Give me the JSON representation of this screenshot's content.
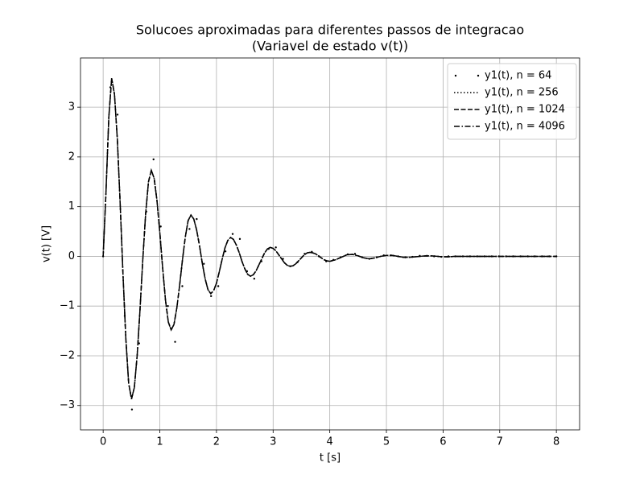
{
  "chart_data": {
    "type": "line",
    "title": "Solucoes aproximadas para diferentes passos de integracao",
    "subtitle": "(Variavel de estado v(t))",
    "xlabel": "t [s]",
    "ylabel": "v(t) [V]",
    "xlim": [
      -0.4,
      8.41
    ],
    "xticks": [
      0,
      1,
      2,
      3,
      4,
      5,
      6,
      7,
      8
    ],
    "ylim": [
      -3.49,
      3.99
    ],
    "yticks": [
      {
        "value": -3,
        "label": "−3"
      },
      {
        "value": -2,
        "label": "−2"
      },
      {
        "value": -1,
        "label": "−1"
      },
      0,
      1,
      2,
      3
    ],
    "grid": true,
    "legend": "upper right",
    "x": [
      0,
      0.05,
      0.1,
      0.15,
      0.2,
      0.25,
      0.3,
      0.35,
      0.4,
      0.45,
      0.5,
      0.55,
      0.6,
      0.65,
      0.7,
      0.75,
      0.8,
      0.85,
      0.9,
      0.95,
      1.0,
      1.05,
      1.1,
      1.15,
      1.2,
      1.25,
      1.3,
      1.35,
      1.4,
      1.45,
      1.5,
      1.55,
      1.6,
      1.65,
      1.7,
      1.75,
      1.8,
      1.85,
      1.9,
      1.95,
      2.0,
      2.05,
      2.1,
      2.15,
      2.2,
      2.25,
      2.3,
      2.35,
      2.4,
      2.45,
      2.5,
      2.55,
      2.6,
      2.65,
      2.7,
      2.75,
      2.8,
      2.85,
      2.9,
      2.95,
      3.0,
      3.05,
      3.1,
      3.15,
      3.2,
      3.25,
      3.3,
      3.35,
      3.4,
      3.45,
      3.5,
      3.55,
      3.6,
      3.65,
      3.7,
      3.75,
      3.8,
      3.85,
      3.9,
      3.95,
      4.0,
      4.1,
      4.2,
      4.3,
      4.4,
      4.5,
      4.6,
      4.7,
      4.8,
      4.9,
      5.0,
      5.1,
      5.2,
      5.3,
      5.4,
      5.5,
      5.6,
      5.7,
      5.8,
      5.9,
      6.0,
      6.1,
      6.2,
      6.3,
      6.4,
      6.5,
      6.6,
      6.7,
      6.8,
      6.9,
      7.0,
      7.1,
      7.2,
      7.3,
      7.4,
      7.5,
      7.6,
      7.7,
      7.8,
      7.9,
      8.0
    ],
    "series": [
      {
        "name": "y1(t), n = 64",
        "color": "#000000",
        "linestyle": "none",
        "marker": "dot",
        "x": [
          0,
          0.127,
          0.254,
          0.381,
          0.508,
          0.635,
          0.762,
          0.889,
          1.016,
          1.143,
          1.27,
          1.397,
          1.524,
          1.651,
          1.778,
          1.905,
          2.032,
          2.159,
          2.286,
          2.413,
          2.54,
          2.667,
          2.794,
          2.921,
          3.048,
          3.175,
          3.302,
          3.429,
          3.556,
          3.683,
          3.81,
          3.937,
          4.064,
          4.19,
          4.318,
          4.445,
          4.572,
          4.699,
          4.826,
          4.953,
          5.08,
          5.207,
          5.334,
          5.46,
          5.588,
          5.715,
          5.842,
          5.969,
          6.095,
          6.222,
          6.349,
          6.476,
          6.603,
          6.73,
          6.857,
          6.984,
          7.111,
          7.238,
          7.365,
          7.492,
          7.619,
          7.746,
          7.873,
          8.0
        ],
        "values": [
          0,
          3.4,
          2.85,
          -1.2,
          -3.08,
          -1.75,
          0.9,
          1.95,
          0.6,
          -1.0,
          -1.72,
          -0.6,
          0.55,
          0.75,
          -0.15,
          -0.8,
          -0.6,
          0.1,
          0.45,
          0.35,
          -0.3,
          -0.45,
          -0.1,
          0.15,
          0.18,
          -0.05,
          -0.2,
          -0.12,
          0.05,
          0.09,
          0,
          -0.1,
          -0.07,
          -0.02,
          0.04,
          0.05,
          -0.02,
          -0.05,
          -0.02,
          0.02,
          0.02,
          0,
          -0.02,
          -0.01,
          0.01,
          0.01,
          0,
          -0.01,
          0,
          0,
          0,
          0,
          0,
          0,
          0,
          0,
          0,
          0,
          0,
          0,
          0,
          0,
          0,
          0
        ]
      },
      {
        "name": "y1(t), n = 256",
        "color": "#000000",
        "linestyle": "dotted",
        "values": [
          0,
          1.3,
          2.8,
          3.58,
          3.26,
          2.36,
          1.07,
          -0.36,
          -1.65,
          -2.55,
          -2.87,
          -2.64,
          -2.0,
          -1.08,
          -0.06,
          0.86,
          1.5,
          1.73,
          1.57,
          1.12,
          0.48,
          -0.23,
          -0.88,
          -1.32,
          -1.48,
          -1.37,
          -1.04,
          -0.58,
          -0.07,
          0.39,
          0.72,
          0.83,
          0.75,
          0.53,
          0.22,
          -0.14,
          -0.45,
          -0.67,
          -0.75,
          -0.69,
          -0.54,
          -0.31,
          -0.06,
          0.17,
          0.32,
          0.38,
          0.34,
          0.23,
          0.08,
          -0.1,
          -0.25,
          -0.36,
          -0.4,
          -0.37,
          -0.29,
          -0.17,
          -0.05,
          0.07,
          0.15,
          0.18,
          0.16,
          0.11,
          0.03,
          -0.05,
          -0.13,
          -0.18,
          -0.2,
          -0.19,
          -0.15,
          -0.09,
          -0.03,
          0.03,
          0.07,
          0.08,
          0.07,
          0.05,
          0.01,
          -0.03,
          -0.07,
          -0.09,
          -0.1,
          -0.07,
          -0.02,
          0.03,
          0.04,
          0.01,
          -0.03,
          -0.05,
          -0.03,
          0,
          0.02,
          0.02,
          0,
          -0.02,
          -0.02,
          -0.01,
          0,
          0.01,
          0.01,
          0,
          -0.01,
          -0.01,
          0,
          0,
          0,
          0,
          0,
          0,
          0,
          0,
          0,
          0,
          0,
          0,
          0,
          0,
          0,
          0,
          0,
          0,
          0
        ]
      },
      {
        "name": "y1(t), n = 1024",
        "color": "#000000",
        "linestyle": "dashed",
        "values": [
          0,
          1.3,
          2.8,
          3.58,
          3.26,
          2.36,
          1.07,
          -0.36,
          -1.65,
          -2.55,
          -2.87,
          -2.64,
          -2.0,
          -1.08,
          -0.06,
          0.86,
          1.5,
          1.73,
          1.57,
          1.12,
          0.48,
          -0.23,
          -0.88,
          -1.32,
          -1.48,
          -1.37,
          -1.04,
          -0.58,
          -0.07,
          0.39,
          0.72,
          0.83,
          0.75,
          0.53,
          0.22,
          -0.14,
          -0.45,
          -0.67,
          -0.75,
          -0.69,
          -0.54,
          -0.31,
          -0.06,
          0.17,
          0.32,
          0.38,
          0.34,
          0.23,
          0.08,
          -0.1,
          -0.25,
          -0.36,
          -0.4,
          -0.37,
          -0.29,
          -0.17,
          -0.05,
          0.07,
          0.15,
          0.18,
          0.16,
          0.11,
          0.03,
          -0.05,
          -0.13,
          -0.18,
          -0.2,
          -0.19,
          -0.15,
          -0.09,
          -0.03,
          0.03,
          0.07,
          0.08,
          0.07,
          0.05,
          0.01,
          -0.03,
          -0.07,
          -0.09,
          -0.1,
          -0.07,
          -0.02,
          0.03,
          0.04,
          0.01,
          -0.03,
          -0.05,
          -0.03,
          0,
          0.02,
          0.02,
          0,
          -0.02,
          -0.02,
          -0.01,
          0,
          0.01,
          0.01,
          0,
          -0.01,
          -0.01,
          0,
          0,
          0,
          0,
          0,
          0,
          0,
          0,
          0,
          0,
          0,
          0,
          0,
          0,
          0,
          0,
          0,
          0,
          0
        ]
      },
      {
        "name": "y1(t), n = 4096",
        "color": "#000000",
        "linestyle": "dashdot",
        "values": [
          0,
          1.3,
          2.8,
          3.58,
          3.26,
          2.36,
          1.07,
          -0.36,
          -1.65,
          -2.55,
          -2.87,
          -2.64,
          -2.0,
          -1.08,
          -0.06,
          0.86,
          1.5,
          1.73,
          1.57,
          1.12,
          0.48,
          -0.23,
          -0.88,
          -1.32,
          -1.48,
          -1.37,
          -1.04,
          -0.58,
          -0.07,
          0.39,
          0.72,
          0.83,
          0.75,
          0.53,
          0.22,
          -0.14,
          -0.45,
          -0.67,
          -0.75,
          -0.69,
          -0.54,
          -0.31,
          -0.06,
          0.17,
          0.32,
          0.38,
          0.34,
          0.23,
          0.08,
          -0.1,
          -0.25,
          -0.36,
          -0.4,
          -0.37,
          -0.29,
          -0.17,
          -0.05,
          0.07,
          0.15,
          0.18,
          0.16,
          0.11,
          0.03,
          -0.05,
          -0.13,
          -0.18,
          -0.2,
          -0.19,
          -0.15,
          -0.09,
          -0.03,
          0.03,
          0.07,
          0.08,
          0.07,
          0.05,
          0.01,
          -0.03,
          -0.07,
          -0.09,
          -0.1,
          -0.07,
          -0.02,
          0.03,
          0.04,
          0.01,
          -0.03,
          -0.05,
          -0.03,
          0,
          0.02,
          0.02,
          0,
          -0.02,
          -0.02,
          -0.01,
          0,
          0.01,
          0.01,
          0,
          -0.01,
          -0.01,
          0,
          0,
          0,
          0,
          0,
          0,
          0,
          0,
          0,
          0,
          0,
          0,
          0,
          0,
          0,
          0,
          0,
          0,
          0
        ]
      }
    ]
  }
}
